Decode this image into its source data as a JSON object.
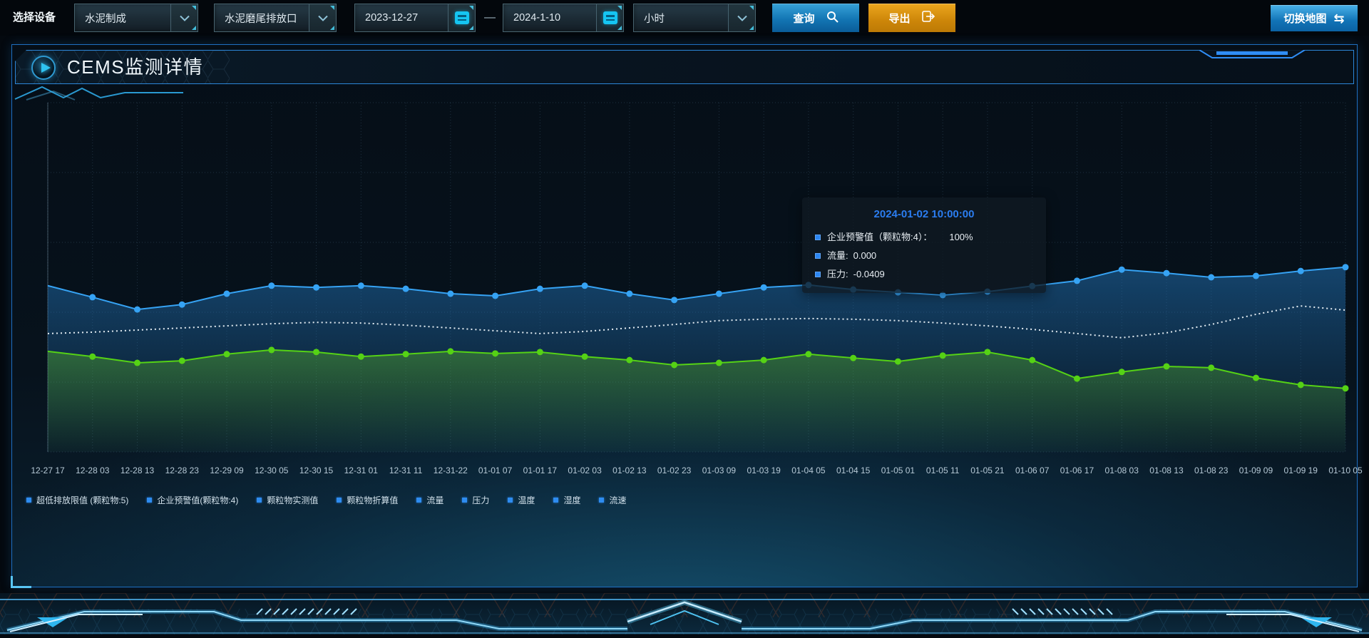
{
  "toolbar": {
    "device_label": "选择设备",
    "selects": {
      "line": "水泥制成",
      "outlet": "水泥磨尾排放口",
      "interval": "小时"
    },
    "dates": {
      "start": "2023-12-27",
      "separator": "—",
      "end": "2024-1-10"
    },
    "buttons": {
      "query": "查询",
      "export": "导出",
      "switch_map": "切换地图"
    }
  },
  "panel": {
    "title": "CEMS监测详情"
  },
  "tooltip": {
    "title": "2024-01-02 10:00:00",
    "items": [
      {
        "label": "企业预警值（颗粒物:4）：",
        "value": "100%"
      },
      {
        "label": "流量:",
        "value": "0.000"
      },
      {
        "label": "压力:",
        "value": "-0.0409"
      }
    ]
  },
  "legend": {
    "items": [
      "超低排放限值 (颗粒物:5)",
      "企业预警值(颗粒物:4)",
      "颗粒物实测值",
      "颗粒物折算值",
      "流量",
      "压力",
      "温度",
      "湿度",
      "流速"
    ]
  },
  "chart_data": {
    "type": "line",
    "title": "CEMS监测详情",
    "xlabel": "",
    "ylabel": "",
    "ylim": [
      0,
      100
    ],
    "grid": true,
    "legend_position": "bottom",
    "x": [
      "12-27 17",
      "12-28 03",
      "12-28 13",
      "12-28 23",
      "12-29 09",
      "12-30 05",
      "12-30 15",
      "12-31 01",
      "12-31 11",
      "12-31-22",
      "01-01 07",
      "01-01 17",
      "01-02 03",
      "01-02 13",
      "01-02 23",
      "01-03 09",
      "01-03 19",
      "01-04 05",
      "01-04 15",
      "01-05 01",
      "01-05 11",
      "01-05 21",
      "01-06 07",
      "01-06 17",
      "01-08 03",
      "01-08 13",
      "01-08 23",
      "01-09 09",
      "01-09 19",
      "01-10 05"
    ],
    "series": [
      {
        "name": "企业预警值(颗粒物:4)",
        "color": "#36a3f4",
        "style": "solid",
        "markers": true,
        "area": true,
        "values": [
          47.6,
          44.3,
          40.8,
          42.2,
          45.3,
          47.6,
          47.1,
          47.6,
          46.7,
          45.3,
          44.7,
          46.7,
          47.6,
          45.3,
          43.5,
          45.3,
          47.1,
          47.8,
          46.5,
          45.7,
          44.9,
          45.9,
          47.5,
          49.0,
          52.2,
          51.2,
          50.0,
          50.4,
          51.8,
          52.9
        ]
      },
      {
        "name": "压力",
        "color": "#e3ecf2",
        "style": "dotted",
        "markers": false,
        "area": false,
        "values": [
          33.9,
          34.3,
          34.9,
          35.5,
          36.1,
          36.7,
          37.1,
          36.9,
          36.3,
          35.5,
          34.7,
          33.9,
          34.5,
          35.5,
          36.5,
          37.6,
          38.0,
          38.2,
          38.0,
          37.6,
          36.9,
          36.1,
          35.1,
          33.9,
          32.7,
          34.1,
          36.5,
          39.4,
          41.8,
          40.6
        ]
      },
      {
        "name": "流量",
        "color": "#55d215",
        "style": "solid",
        "markers": true,
        "area": true,
        "values": [
          28.8,
          27.3,
          25.5,
          26.1,
          28.0,
          29.2,
          28.6,
          27.3,
          28.0,
          28.8,
          28.2,
          28.6,
          27.3,
          26.3,
          24.9,
          25.5,
          26.3,
          28.0,
          26.9,
          25.9,
          27.6,
          28.6,
          26.3,
          21.0,
          22.9,
          24.5,
          24.1,
          21.2,
          19.2,
          18.2
        ]
      }
    ]
  },
  "colors": {
    "accent": "#2f8df5",
    "panel_border": "#1e6fc0",
    "query_button": "#1376b4",
    "export_button": "#cd8609",
    "series_blue": "#36a3f4",
    "series_green": "#55d215",
    "series_white": "#e3ecf2",
    "tooltip_title": "#2b7df0"
  }
}
